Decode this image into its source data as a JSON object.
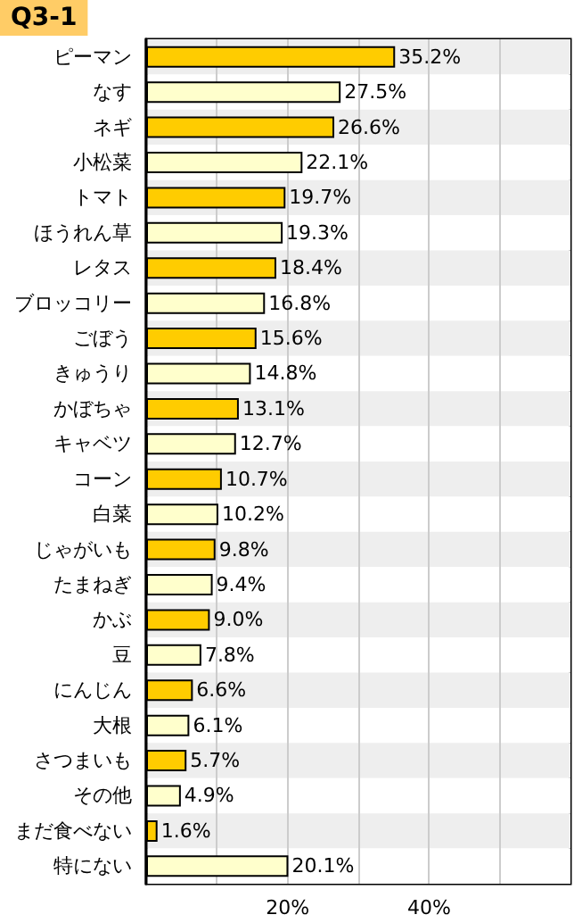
{
  "chart_data": {
    "type": "bar",
    "orientation": "horizontal",
    "title": "Q3-1",
    "categories": [
      "ピーマン",
      "なす",
      "ネギ",
      "小松菜",
      "トマト",
      "ほうれん草",
      "レタス",
      "ブロッコリー",
      "ごぼう",
      "きゅうり",
      "かぼちゃ",
      "キャベツ",
      "コーン",
      "白菜",
      "じゃがいも",
      "たまねぎ",
      "かぶ",
      "豆",
      "にんじん",
      "大根",
      "さつまいも",
      "その他",
      "まだ食べない",
      "特にない"
    ],
    "values": [
      35.2,
      27.5,
      26.6,
      22.1,
      19.7,
      19.3,
      18.4,
      16.8,
      15.6,
      14.8,
      13.1,
      12.7,
      10.7,
      10.2,
      9.8,
      9.4,
      9.0,
      7.8,
      6.6,
      6.1,
      5.7,
      4.9,
      1.6,
      20.1
    ],
    "value_labels": [
      "35.2%",
      "27.5%",
      "26.6%",
      "22.1%",
      "19.7%",
      "19.3%",
      "18.4%",
      "16.8%",
      "15.6%",
      "14.8%",
      "13.1%",
      "12.7%",
      "10.7%",
      "10.2%",
      "9.8%",
      "9.4%",
      "9.0%",
      "7.8%",
      "6.6%",
      "6.1%",
      "5.7%",
      "4.9%",
      "1.6%",
      "20.1%"
    ],
    "colors": [
      "#ffcc00",
      "#ffffcc",
      "#ffcc00",
      "#ffffcc",
      "#ffcc00",
      "#ffffcc",
      "#ffcc00",
      "#ffffcc",
      "#ffcc00",
      "#ffffcc",
      "#ffcc00",
      "#ffffcc",
      "#ffcc00",
      "#ffffcc",
      "#ffcc00",
      "#ffffcc",
      "#ffcc00",
      "#ffffcc",
      "#ffcc00",
      "#ffffcc",
      "#ffcc00",
      "#ffffcc",
      "#ffcc00",
      "#ffffcc"
    ],
    "xlim": [
      0,
      60
    ],
    "xticks": [
      {
        "value": 10,
        "label": null
      },
      {
        "value": 20,
        "label": "20%"
      },
      {
        "value": 30,
        "label": null
      },
      {
        "value": 40,
        "label": "40%"
      },
      {
        "value": 50,
        "label": null
      }
    ],
    "grid": "x"
  }
}
